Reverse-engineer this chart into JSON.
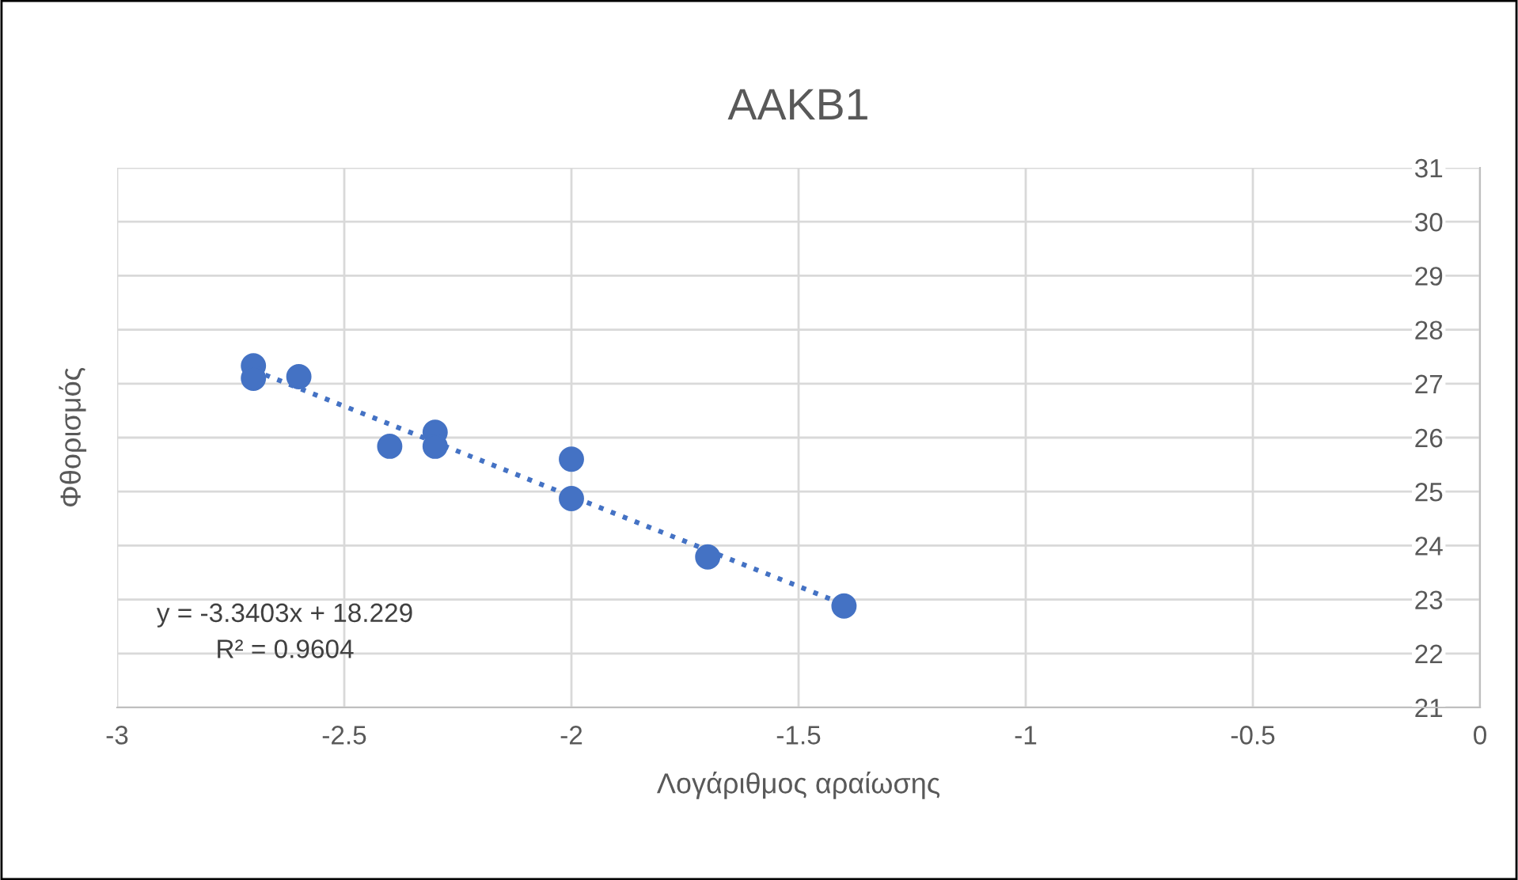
{
  "chart_data": {
    "type": "scatter",
    "title": "AAKB1",
    "xlabel": "Λογάριθμος αραίωσης",
    "ylabel": "Φθορισμός",
    "series": [
      {
        "color": "#4472c4",
        "marker": "circle",
        "x": [
          -2.7,
          -2.7,
          -2.6,
          -2.3,
          -2.3,
          -2.4,
          -2.0,
          -2.0,
          -1.7,
          -1.4
        ],
        "values": [
          27.33,
          27.1,
          27.13,
          26.1,
          25.84,
          25.84,
          25.6,
          24.87,
          23.79,
          22.88
        ]
      },
      {
        "type": "line",
        "color": "#4472c4",
        "line_style": "dotted",
        "x": [
          -2.7,
          -1.4
        ],
        "values": [
          27.25,
          22.91
        ]
      }
    ],
    "annotations": [
      "y = -3.3403x + 18.229\nR² = 0.9604"
    ],
    "xlim": [
      -3,
      0
    ],
    "ylim": [
      21,
      31
    ],
    "xticks": [
      -3,
      -2.5,
      -2,
      -1.5,
      -1,
      -0.5,
      0
    ],
    "yticks": [
      21,
      22,
      23,
      24,
      25,
      26,
      27,
      28,
      29,
      30,
      31
    ],
    "grid": true,
    "legend": false
  }
}
